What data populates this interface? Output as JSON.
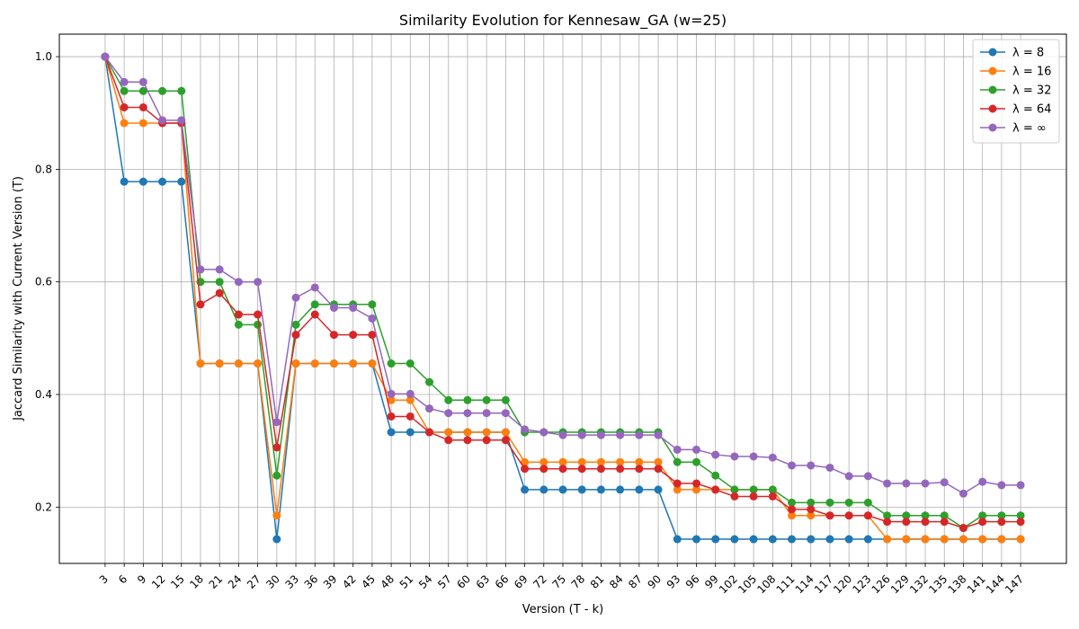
{
  "chart_data": {
    "type": "line",
    "title": "Similarity Evolution for Kennesaw_GA (w=25)",
    "xlabel": "Version (T - k)",
    "ylabel": "Jaccard Similarity with Current Version (T)",
    "x": [
      3,
      6,
      9,
      12,
      15,
      18,
      21,
      24,
      27,
      30,
      33,
      36,
      39,
      42,
      45,
      48,
      51,
      54,
      57,
      60,
      63,
      66,
      69,
      72,
      75,
      78,
      81,
      84,
      87,
      90,
      93,
      96,
      99,
      102,
      105,
      108,
      111,
      114,
      117,
      120,
      123,
      126,
      129,
      132,
      135,
      138,
      141,
      144,
      147
    ],
    "ylim": [
      0.1,
      1.04
    ],
    "yticks": [
      0.2,
      0.4,
      0.6,
      0.8,
      1.0
    ],
    "grid": true,
    "legend_position": "top-right",
    "series": [
      {
        "name": "λ = 8",
        "color": "#1f77b4",
        "values": [
          1.0,
          0.778,
          0.778,
          0.778,
          0.778,
          0.455,
          0.455,
          0.455,
          0.455,
          0.143,
          0.455,
          0.455,
          0.455,
          0.455,
          0.455,
          0.333,
          0.333,
          0.333,
          0.333,
          0.333,
          0.333,
          0.333,
          0.231,
          0.231,
          0.231,
          0.231,
          0.231,
          0.231,
          0.231,
          0.231,
          0.143,
          0.143,
          0.143,
          0.143,
          0.143,
          0.143,
          0.143,
          0.143,
          0.143,
          0.143,
          0.143,
          0.143,
          0.143,
          0.143,
          0.143,
          0.143,
          0.143,
          0.143,
          0.143
        ]
      },
      {
        "name": "λ = 16",
        "color": "#ff7f0e",
        "values": [
          1.0,
          0.882,
          0.882,
          0.882,
          0.882,
          0.455,
          0.455,
          0.455,
          0.455,
          0.185,
          0.455,
          0.455,
          0.455,
          0.455,
          0.455,
          0.39,
          0.39,
          0.333,
          0.333,
          0.333,
          0.333,
          0.333,
          0.28,
          0.28,
          0.28,
          0.28,
          0.28,
          0.28,
          0.28,
          0.28,
          0.231,
          0.231,
          0.231,
          0.231,
          0.231,
          0.231,
          0.185,
          0.185,
          0.185,
          0.185,
          0.185,
          0.143,
          0.143,
          0.143,
          0.143,
          0.143,
          0.143,
          0.143,
          0.143
        ]
      },
      {
        "name": "λ = 32",
        "color": "#2ca02c",
        "values": [
          1.0,
          0.939,
          0.939,
          0.939,
          0.939,
          0.6,
          0.6,
          0.524,
          0.524,
          0.256,
          0.524,
          0.56,
          0.56,
          0.56,
          0.56,
          0.455,
          0.455,
          0.422,
          0.39,
          0.39,
          0.39,
          0.39,
          0.333,
          0.333,
          0.333,
          0.333,
          0.333,
          0.333,
          0.333,
          0.333,
          0.28,
          0.28,
          0.256,
          0.231,
          0.231,
          0.231,
          0.208,
          0.208,
          0.208,
          0.208,
          0.208,
          0.185,
          0.185,
          0.185,
          0.185,
          0.163,
          0.185,
          0.185,
          0.185
        ]
      },
      {
        "name": "λ = 64",
        "color": "#d62728",
        "values": [
          1.0,
          0.91,
          0.91,
          0.882,
          0.882,
          0.56,
          0.58,
          0.542,
          0.542,
          0.306,
          0.506,
          0.542,
          0.506,
          0.506,
          0.506,
          0.361,
          0.361,
          0.333,
          0.319,
          0.319,
          0.319,
          0.319,
          0.268,
          0.268,
          0.268,
          0.268,
          0.268,
          0.268,
          0.268,
          0.268,
          0.242,
          0.242,
          0.231,
          0.219,
          0.219,
          0.219,
          0.196,
          0.196,
          0.185,
          0.185,
          0.185,
          0.174,
          0.174,
          0.174,
          0.174,
          0.163,
          0.174,
          0.174,
          0.174
        ]
      },
      {
        "name": "λ = ∞",
        "color": "#9467bd",
        "values": [
          1.0,
          0.955,
          0.955,
          0.887,
          0.887,
          0.622,
          0.622,
          0.6,
          0.6,
          0.351,
          0.572,
          0.59,
          0.554,
          0.554,
          0.535,
          0.401,
          0.401,
          0.375,
          0.367,
          0.367,
          0.367,
          0.367,
          0.338,
          0.333,
          0.328,
          0.328,
          0.328,
          0.328,
          0.328,
          0.328,
          0.302,
          0.302,
          0.293,
          0.29,
          0.29,
          0.288,
          0.274,
          0.274,
          0.27,
          0.255,
          0.255,
          0.242,
          0.242,
          0.242,
          0.244,
          0.224,
          0.245,
          0.239,
          0.239
        ]
      }
    ]
  }
}
